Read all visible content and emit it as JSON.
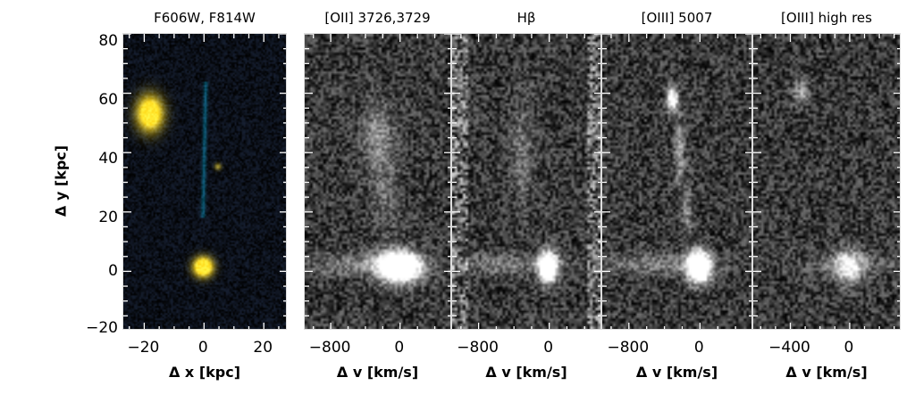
{
  "panels": [
    {
      "title": "F606W, F814W",
      "xticks": [
        "−20",
        "0",
        "20"
      ],
      "xvals": [
        -20,
        0,
        20
      ],
      "xlabel": "Δ x  [kpc]",
      "colormap": "rgb"
    },
    {
      "title": "[OII] 3726,3729",
      "xticks": [
        "−800",
        "0"
      ],
      "xvals": [
        -800,
        0
      ],
      "xlabel": "Δ v  [km/s]",
      "colormap": "gray"
    },
    {
      "title": "Hβ",
      "xticks": [
        "−800",
        "0"
      ],
      "xvals": [
        -800,
        0
      ],
      "xlabel": "Δ v  [km/s]",
      "colormap": "gray"
    },
    {
      "title": "[OIII] 5007",
      "xticks": [
        "−800",
        "0"
      ],
      "xvals": [
        -800,
        0
      ],
      "xlabel": "Δ v  [km/s]",
      "colormap": "gray"
    },
    {
      "title": "[OIII] high res",
      "xticks": [
        "−400",
        "0"
      ],
      "xvals": [
        -400,
        0
      ],
      "xlabel": "Δ v  [km/s]",
      "colormap": "gray"
    }
  ],
  "yaxis": {
    "label": "Δ y  [kpc]",
    "ticks": [
      "80",
      "60",
      "40",
      "20",
      "0",
      "−20"
    ],
    "values": [
      80,
      60,
      40,
      20,
      0,
      -20
    ],
    "ylim": [
      -20,
      80
    ]
  }
}
